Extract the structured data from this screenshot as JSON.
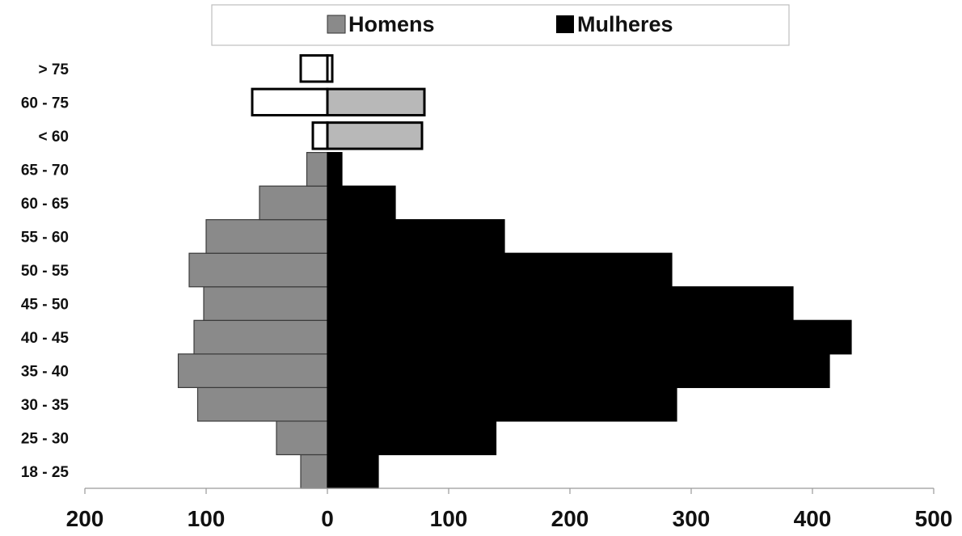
{
  "chart_data": {
    "type": "bar",
    "orientation": "horizontal",
    "layout": "population-pyramid",
    "categories": [
      "18 - 25",
      "25 - 30",
      "30 - 35",
      "35 - 40",
      "40 - 45",
      "45 - 50",
      "50 - 55",
      "55 - 60",
      "60 - 65",
      "65 - 70",
      "< 60",
      "60 - 75",
      "> 75"
    ],
    "series": [
      {
        "name": "Homens",
        "color": "#8a8a8a",
        "direction": "left",
        "values": [
          22,
          42,
          107,
          123,
          110,
          102,
          114,
          100,
          56,
          17,
          0,
          0,
          0
        ]
      },
      {
        "name": "Mulheres",
        "color": "#000000",
        "direction": "right",
        "values": [
          42,
          139,
          288,
          414,
          432,
          384,
          284,
          146,
          56,
          12,
          0,
          0,
          0
        ]
      }
    ],
    "outline_bars": [
      {
        "category": "< 60",
        "left": 12,
        "right": 78,
        "left_fill": "#ffffff",
        "right_fill": "#b8b8b8"
      },
      {
        "category": "60 - 75",
        "left": 62,
        "right": 80,
        "left_fill": "#ffffff",
        "right_fill": "#b8b8b8"
      },
      {
        "category": "> 75",
        "left": 22,
        "right": 4,
        "left_fill": "#ffffff",
        "right_fill": "#ffffff"
      }
    ],
    "xlim": [
      -200,
      500
    ],
    "xticks": [
      {
        "value": -200,
        "label": "200"
      },
      {
        "value": -100,
        "label": "100"
      },
      {
        "value": 0,
        "label": "0"
      },
      {
        "value": 100,
        "label": "100"
      },
      {
        "value": 200,
        "label": "200"
      },
      {
        "value": 300,
        "label": "300"
      },
      {
        "value": 400,
        "label": "400"
      },
      {
        "value": 500,
        "label": "500"
      }
    ],
    "legend": {
      "position": "top",
      "entries": [
        {
          "label": "Homens",
          "color": "#8a8a8a"
        },
        {
          "label": "Mulheres",
          "color": "#000000"
        }
      ]
    },
    "grid": false,
    "title": "",
    "xlabel": "",
    "ylabel": ""
  }
}
